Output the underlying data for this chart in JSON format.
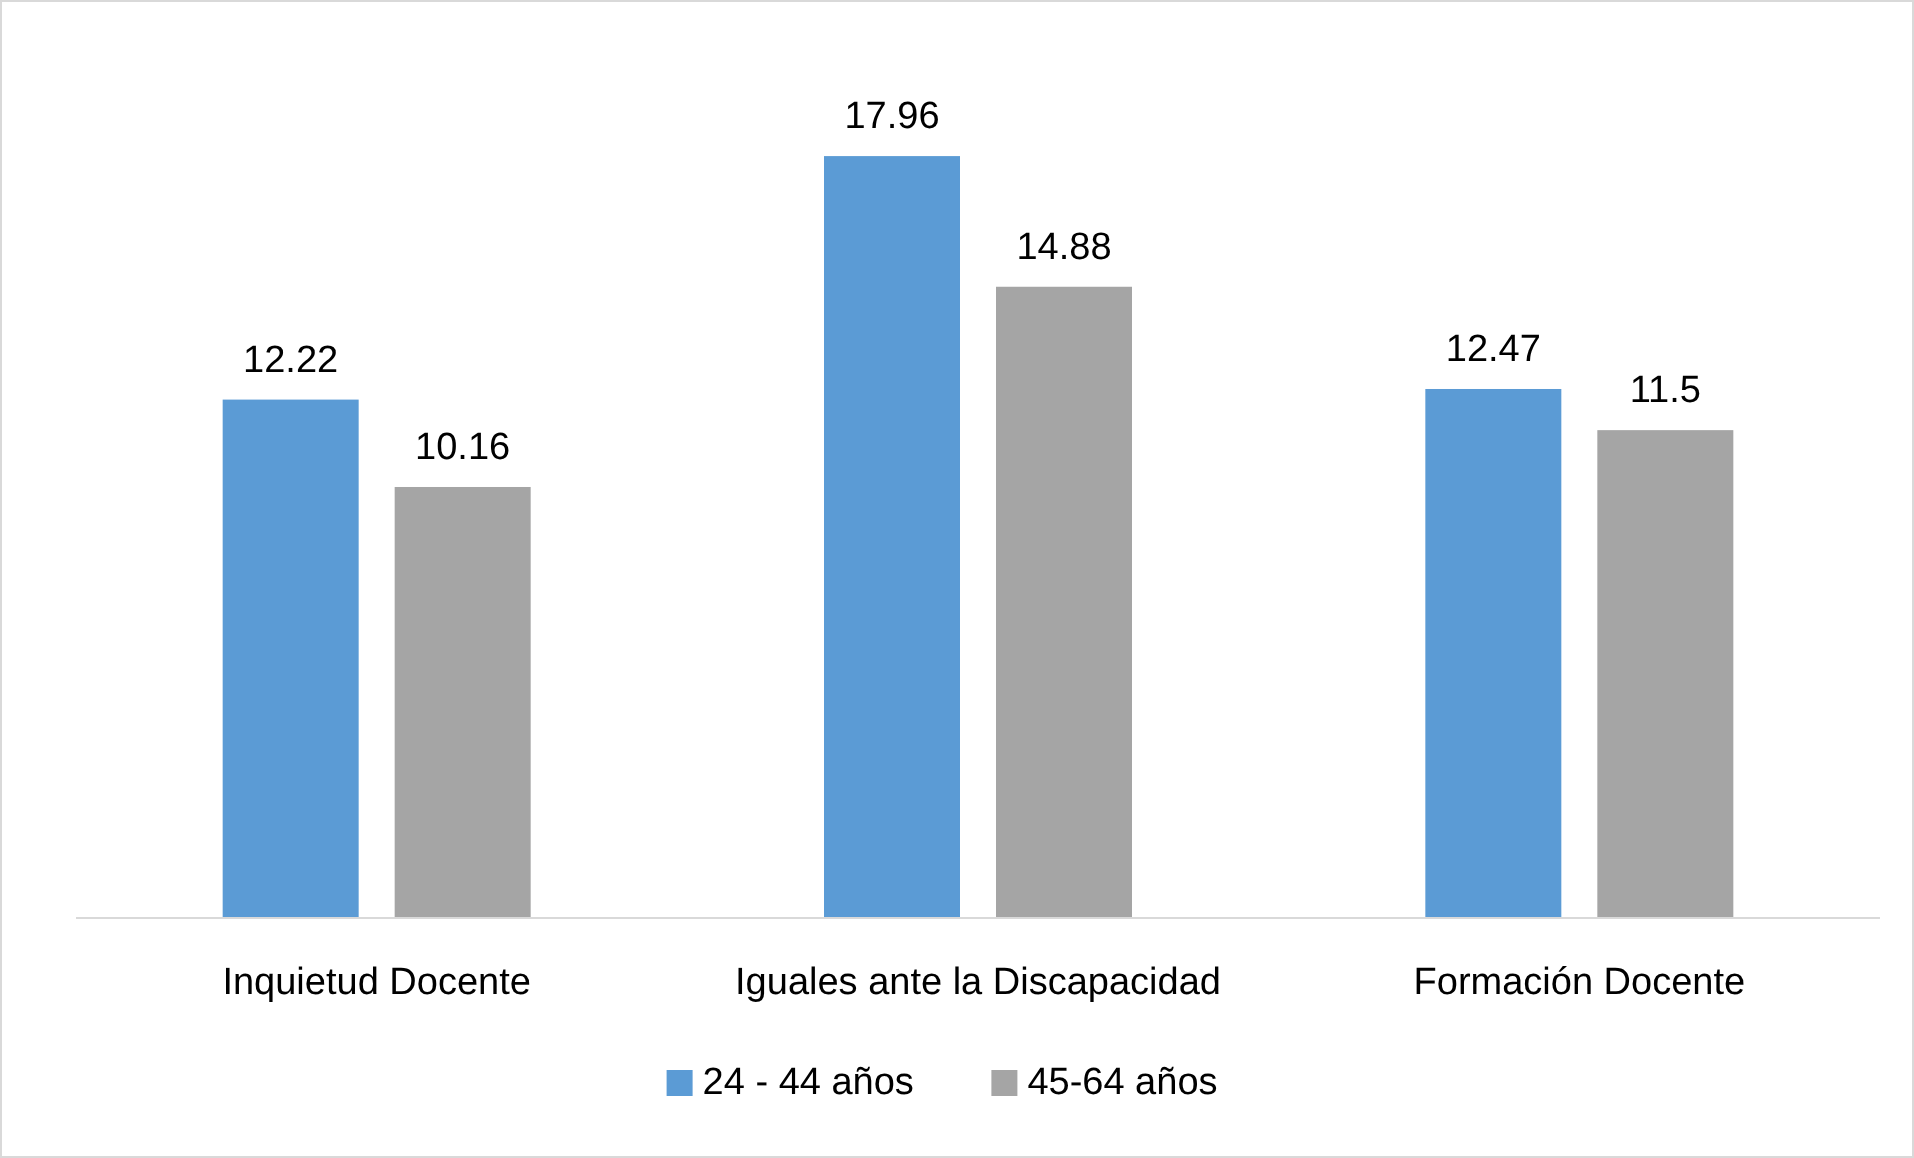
{
  "chart_data": {
    "type": "bar",
    "categories": [
      "Inquietud Docente",
      "Iguales ante la Discapacidad",
      "Formación Docente"
    ],
    "series": [
      {
        "name": "24 - 44 años",
        "color": "#5b9bd5",
        "values": [
          12.22,
          17.96,
          12.47
        ]
      },
      {
        "name": "45-64 años",
        "color": "#a5a5a5",
        "values": [
          10.16,
          14.88,
          11.5
        ]
      }
    ],
    "data_labels": true,
    "legend": "bottom"
  }
}
